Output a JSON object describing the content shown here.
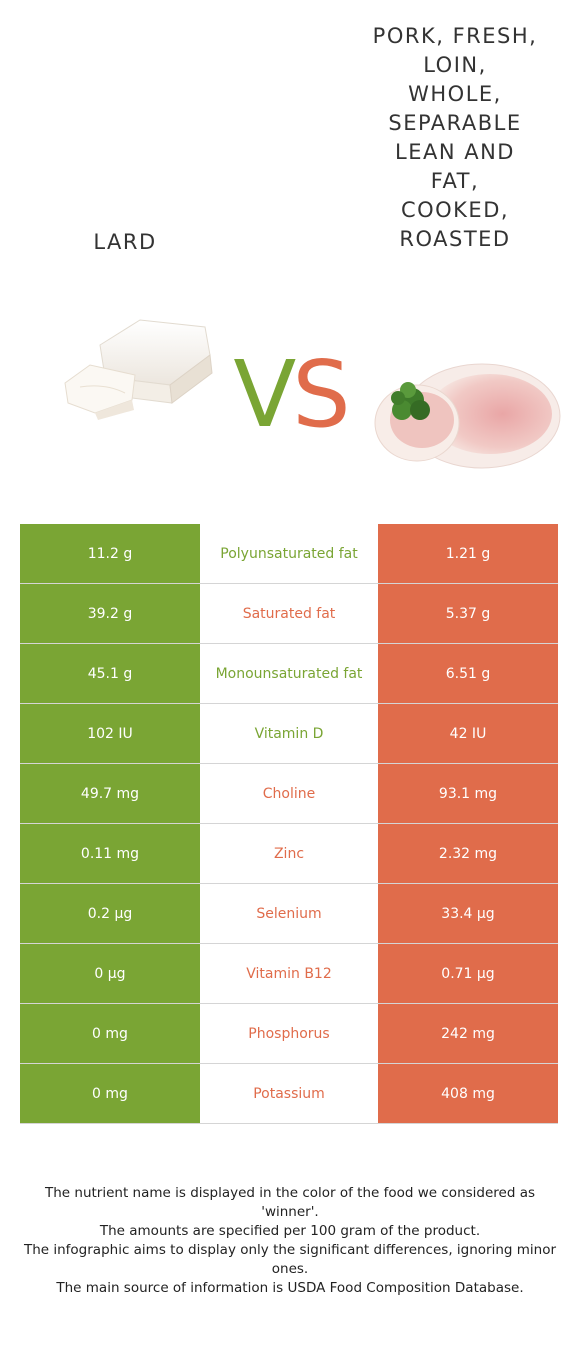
{
  "header": {
    "left_title": "LARD",
    "right_title": "PORK, FRESH,\nLOIN,\nWHOLE,\nSEPARABLE\nLEAN AND\nFAT,\nCOOKED,\nROASTED",
    "vs_v": "V",
    "vs_s": "S"
  },
  "colors": {
    "left": "#7aa534",
    "right": "#e06c4b"
  },
  "rows": [
    {
      "nutrient": "Polyunsaturated fat",
      "left": "11.2 g",
      "right": "1.21 g",
      "winner": "left"
    },
    {
      "nutrient": "Saturated fat",
      "left": "39.2 g",
      "right": "5.37 g",
      "winner": "right"
    },
    {
      "nutrient": "Monounsaturated fat",
      "left": "45.1 g",
      "right": "6.51 g",
      "winner": "left"
    },
    {
      "nutrient": "Vitamin D",
      "left": "102 IU",
      "right": "42 IU",
      "winner": "left"
    },
    {
      "nutrient": "Choline",
      "left": "49.7 mg",
      "right": "93.1 mg",
      "winner": "right"
    },
    {
      "nutrient": "Zinc",
      "left": "0.11 mg",
      "right": "2.32 mg",
      "winner": "right"
    },
    {
      "nutrient": "Selenium",
      "left": "0.2 µg",
      "right": "33.4 µg",
      "winner": "right"
    },
    {
      "nutrient": "Vitamin B12",
      "left": "0 µg",
      "right": "0.71 µg",
      "winner": "right"
    },
    {
      "nutrient": "Phosphorus",
      "left": "0 mg",
      "right": "242 mg",
      "winner": "right"
    },
    {
      "nutrient": "Potassium",
      "left": "0 mg",
      "right": "408 mg",
      "winner": "right"
    }
  ],
  "footer": {
    "line1": "The nutrient name is displayed in the color of the food we considered as 'winner'.",
    "line2": "The amounts are specified per 100 gram of the product.",
    "line3": "The infographic aims to display only the significant differences, ignoring minor ones.",
    "line4": "The main source of information is USDA Food Composition Database."
  }
}
